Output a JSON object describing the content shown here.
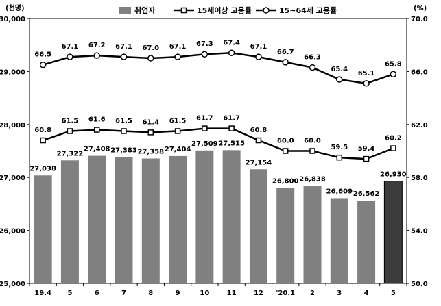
{
  "chart_data": {
    "type": "bar",
    "left_unit": "(천명)",
    "right_unit": "(%)",
    "categories": [
      "19.4",
      "5",
      "6",
      "7",
      "8",
      "9",
      "10",
      "11",
      "12",
      "'20.1",
      "2",
      "3",
      "4",
      "5"
    ],
    "series": [
      {
        "name": "취업자",
        "type": "bar",
        "axis": "left",
        "values": [
          27038,
          27322,
          27408,
          27383,
          27358,
          27404,
          27509,
          27515,
          27154,
          26800,
          26838,
          26609,
          26562,
          26930
        ],
        "labels": [
          "27,038",
          "27,322",
          "27,408",
          "27,383",
          "27,358",
          "27,404",
          "27,509",
          "27,515",
          "27,154",
          "26,800",
          "26,838",
          "26,609",
          "26,562",
          "26,930"
        ],
        "color": "#808080",
        "highlight_color": "#3c3c3c"
      },
      {
        "name": "15세이상 고용률",
        "type": "line",
        "marker": "square",
        "axis": "right",
        "values": [
          60.8,
          61.5,
          61.6,
          61.5,
          61.4,
          61.5,
          61.7,
          61.7,
          60.8,
          60.0,
          60.0,
          59.5,
          59.4,
          60.2
        ],
        "labels": [
          "60.8",
          "61.5",
          "61.6",
          "61.5",
          "61.4",
          "61.5",
          "61.7",
          "61.7",
          "60.8",
          "60.0",
          "60.0",
          "59.5",
          "59.4",
          "60.2"
        ]
      },
      {
        "name": "15~64세 고용률",
        "type": "line",
        "marker": "circle",
        "axis": "right",
        "values": [
          66.5,
          67.1,
          67.2,
          67.1,
          67.0,
          67.1,
          67.3,
          67.4,
          67.1,
          66.7,
          66.3,
          65.4,
          65.1,
          65.8
        ],
        "labels": [
          "66.5",
          "67.1",
          "67.2",
          "67.1",
          "67.0",
          "67.1",
          "67.3",
          "67.4",
          "67.1",
          "66.7",
          "66.3",
          "65.4",
          "65.1",
          "65.8"
        ]
      }
    ],
    "y_left": {
      "min": 25000,
      "max": 30000,
      "ticks": [
        25000,
        26000,
        27000,
        28000,
        29000,
        30000
      ],
      "tick_labels": [
        "25,000",
        "26,000",
        "27,000",
        "28,000",
        "29,000",
        "30,000"
      ]
    },
    "y_right": {
      "min": 50.0,
      "max": 70.0,
      "ticks": [
        50,
        54,
        58,
        62,
        66,
        70
      ],
      "tick_labels": [
        "50.0",
        "54.0",
        "58.0",
        "62.0",
        "66.0",
        "70.0"
      ]
    },
    "grid": false,
    "legend_position": "top-center"
  }
}
